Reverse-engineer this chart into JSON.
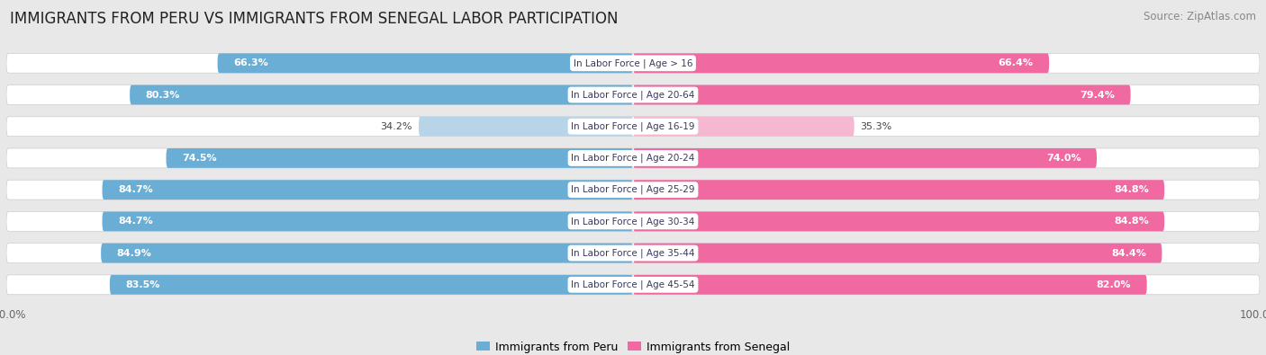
{
  "title": "IMMIGRANTS FROM PERU VS IMMIGRANTS FROM SENEGAL LABOR PARTICIPATION",
  "source": "Source: ZipAtlas.com",
  "categories": [
    "In Labor Force | Age > 16",
    "In Labor Force | Age 20-64",
    "In Labor Force | Age 16-19",
    "In Labor Force | Age 20-24",
    "In Labor Force | Age 25-29",
    "In Labor Force | Age 30-34",
    "In Labor Force | Age 35-44",
    "In Labor Force | Age 45-54"
  ],
  "peru_values": [
    66.3,
    80.3,
    34.2,
    74.5,
    84.7,
    84.7,
    84.9,
    83.5
  ],
  "senegal_values": [
    66.4,
    79.4,
    35.3,
    74.0,
    84.8,
    84.8,
    84.4,
    82.0
  ],
  "peru_color": "#6aaed6",
  "peru_color_light": "#b8d4e8",
  "senegal_color": "#f069a0",
  "senegal_color_light": "#f5b8d0",
  "label_peru": "Immigrants from Peru",
  "label_senegal": "Immigrants from Senegal",
  "bg_color": "#e8e8e8",
  "row_bg": "#f5f5f5",
  "bar_bg_color": "#dcdcdc",
  "center_label_color": "#3a3a5c",
  "max_val": 100.0,
  "title_fontsize": 12,
  "source_fontsize": 8.5,
  "bar_label_fontsize": 8,
  "category_fontsize": 7.5,
  "legend_fontsize": 9,
  "axis_label_fontsize": 8.5
}
